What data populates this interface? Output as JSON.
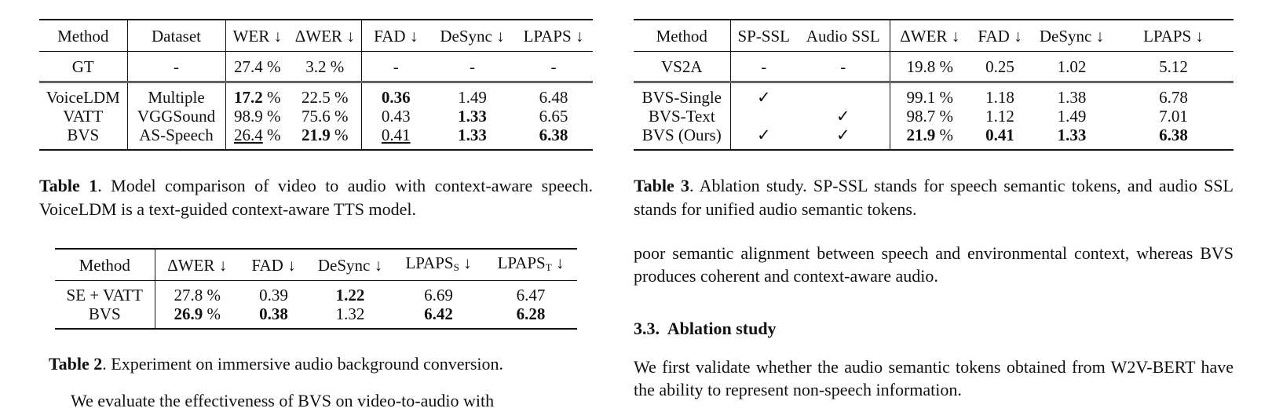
{
  "table1": {
    "headers": [
      "Method",
      "Dataset",
      "WER ↓",
      "ΔWER ↓",
      "FAD ↓",
      "DeSync ↓",
      "LPAPS ↓"
    ],
    "gt": [
      "GT",
      "-",
      "27.4 %",
      "3.2 %",
      "-",
      "-",
      "-"
    ],
    "rows": [
      [
        "VoiceLDM",
        "Multiple",
        "17.2",
        "22.5 %",
        "0.36",
        "1.49",
        "6.48"
      ],
      [
        "VATT",
        "VGGSound",
        "98.9 %",
        "75.6 %",
        "0.43",
        "1.33",
        "6.65"
      ],
      [
        "BVS",
        "AS-Speech",
        "26.4",
        "21.9",
        "0.41",
        "1.33",
        "6.38"
      ]
    ],
    "pct": " %",
    "caption_label": "Table 1",
    "caption": ". Model comparison of video to audio with context-aware speech. VoiceLDM is a text-guided context-aware TTS model."
  },
  "table2": {
    "headers": [
      "Method",
      "ΔWER ↓",
      "FAD ↓",
      "DeSync ↓",
      "LPAPS",
      "S",
      "↓",
      "LPAPS",
      "T",
      "↓"
    ],
    "rows": [
      [
        "SE + VATT",
        "27.8 %",
        "0.39",
        "1.22",
        "6.69",
        "6.47"
      ],
      [
        "BVS",
        "26.9",
        "0.38",
        "1.32",
        "6.42",
        "6.28"
      ]
    ],
    "pct": " %",
    "caption_label": "Table 2",
    "caption": ". Experiment on immersive audio background conversion."
  },
  "table3": {
    "headers": [
      "Method",
      "SP-SSL",
      "Audio SSL",
      "ΔWER ↓",
      "FAD ↓",
      "DeSync ↓",
      "LPAPS ↓"
    ],
    "baseline": [
      "VS2A",
      "-",
      "-",
      "19.8 %",
      "0.25",
      "1.02",
      "5.12"
    ],
    "rows": [
      [
        "BVS-Single",
        "✓",
        "",
        "99.1 %",
        "1.18",
        "1.38",
        "6.78"
      ],
      [
        "BVS-Text",
        "",
        "✓",
        "98.7 %",
        "1.12",
        "1.49",
        "7.01"
      ],
      [
        "BVS (Ours)",
        "✓",
        "✓",
        "21.9",
        "0.41",
        "1.33",
        "6.38"
      ]
    ],
    "pct": " %",
    "caption_label": "Table 3",
    "caption": ". Ablation study. SP-SSL stands for speech semantic tokens, and audio SSL stands for unified audio semantic tokens."
  },
  "left_body": "We evaluate the effectiveness of BVS on video-to-audio with",
  "right_para1": "poor semantic alignment between speech and environmental context, whereas BVS produces coherent and context-aware audio.",
  "section_heading": "3.3.  Ablation study",
  "right_para2": "We first validate whether the audio semantic tokens obtained from W2V-BERT have the ability to represent non-speech information."
}
